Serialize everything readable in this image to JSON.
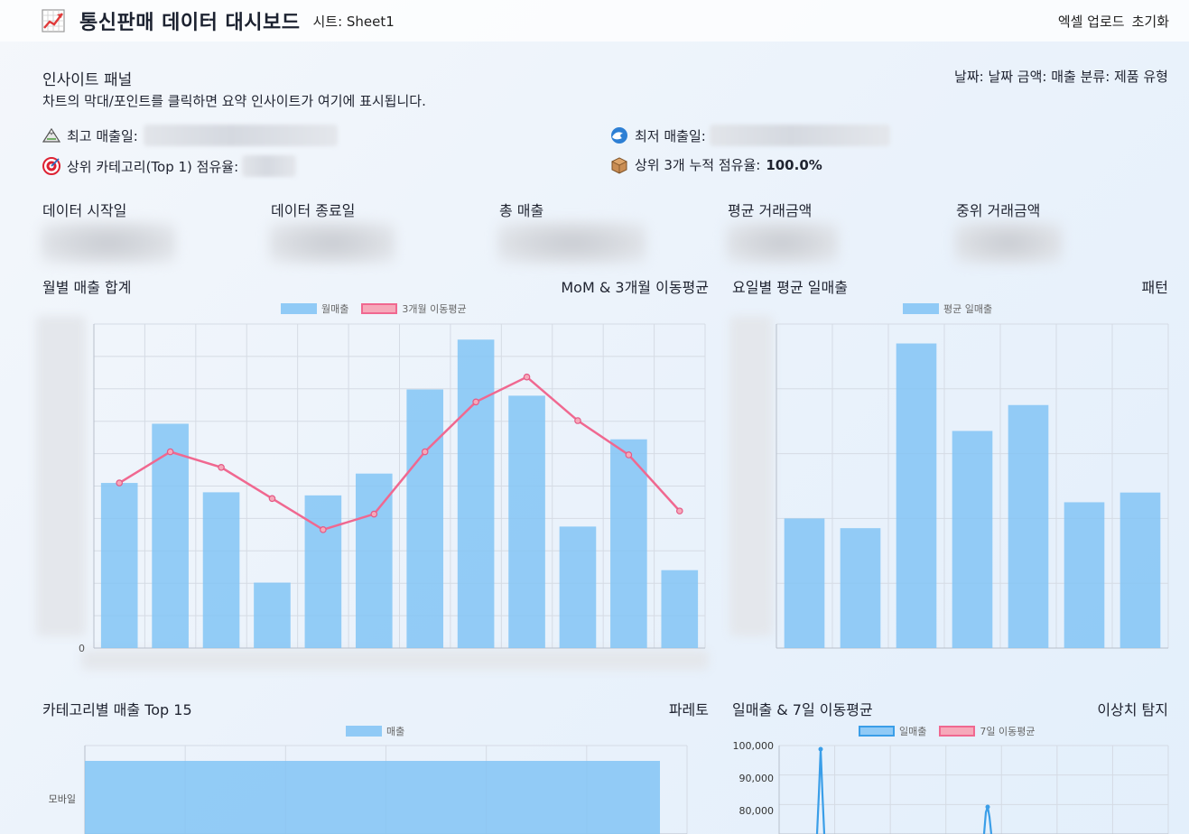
{
  "header": {
    "title": "통신판매 데이터 대시보드",
    "sheet": "시트: Sheet1",
    "actions": [
      "엑셀 업로드",
      "초기화"
    ]
  },
  "insight_panel": {
    "title": "인사이트 패널",
    "description": "차트의 막대/포인트를 클릭하면 요약 인사이트가 여기에 표시됩니다.",
    "field_map": "날짜: 날짜 금액: 매출 분류: 제품 유형",
    "items": [
      {
        "label": "최고 매출일:",
        "icon": "mountain-icon",
        "value": ""
      },
      {
        "label": "최저 매출일:",
        "icon": "wave-icon",
        "value": ""
      },
      {
        "label": "상위 카테고리(Top 1) 점유율:",
        "icon": "target-icon",
        "value": ""
      },
      {
        "label": "상위 3개 누적 점유율:",
        "icon": "box-icon",
        "value": "100.0%"
      }
    ]
  },
  "kpis": [
    {
      "label": "데이터 시작일"
    },
    {
      "label": "데이터 종료일"
    },
    {
      "label": "총 매출"
    },
    {
      "label": "평균 거래금액"
    },
    {
      "label": "중위 거래금액"
    }
  ],
  "sections": {
    "monthly": {
      "title": "월별 매출 합계",
      "right": "MoM & 3개월 이동평균"
    },
    "weekday": {
      "title": "요일별 평균 일매출",
      "right": "패턴"
    },
    "category": {
      "title": "카테고리별 매출 Top 15",
      "right": "파레토"
    },
    "daily": {
      "title": "일매출 & 7일 이동평균",
      "right": "이상치 탐지"
    }
  },
  "chart_data": [
    {
      "type": "bar",
      "series": [
        {
          "name": "월매출",
          "type": "bar",
          "values": [
            53,
            72,
            50,
            21,
            49,
            56,
            83,
            99,
            81,
            39,
            67,
            25
          ]
        },
        {
          "name": "3개월 이동평균",
          "type": "line",
          "values": [
            53,
            63,
            58,
            48,
            38,
            43,
            63,
            79,
            87,
            73,
            62,
            44
          ]
        }
      ],
      "y_tick_labels": [
        "0"
      ],
      "grid": true,
      "legend": "top"
    },
    {
      "type": "bar",
      "series": [
        {
          "name": "평균 일매출",
          "values": [
            40,
            37,
            94,
            67,
            75,
            45,
            48
          ]
        }
      ],
      "grid": true,
      "legend": "top"
    },
    {
      "type": "bar",
      "orientation": "horizontal",
      "categories": [
        "모바일"
      ],
      "series": [
        {
          "name": "매출",
          "values": [
            100
          ]
        }
      ],
      "grid": true,
      "legend": "top"
    },
    {
      "type": "line",
      "series": [
        {
          "name": "일매출"
        },
        {
          "name": "7일 이동평균"
        }
      ],
      "y_tick_labels": [
        "100,000",
        "90,000",
        "80,000"
      ],
      "grid": true,
      "legend": "top"
    }
  ]
}
